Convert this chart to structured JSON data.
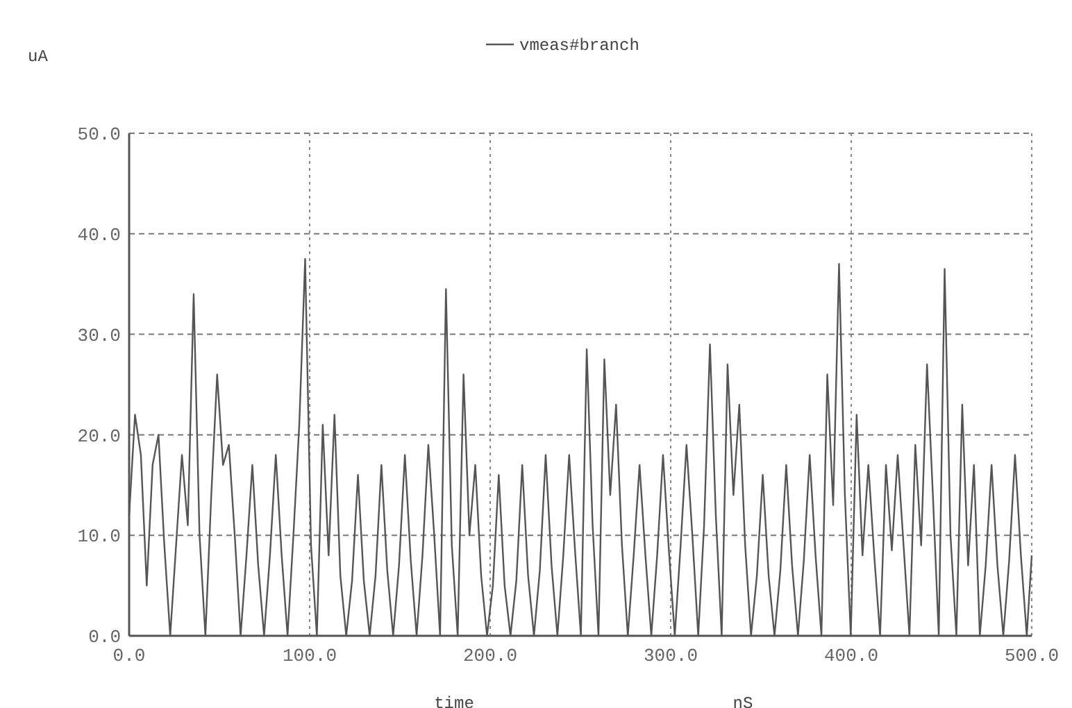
{
  "chart_data": {
    "type": "line",
    "ylabel": "uA",
    "xlabel": "time",
    "annotations": [
      "nS"
    ],
    "legend": "top",
    "grid": true,
    "xlim": [
      0,
      500
    ],
    "ylim": [
      0,
      50
    ],
    "xticks": [
      {
        "value": 0,
        "label": "0.0"
      },
      {
        "value": 100,
        "label": "100.0"
      },
      {
        "value": 200,
        "label": "200.0"
      },
      {
        "value": 300,
        "label": "300.0"
      },
      {
        "value": 400,
        "label": "400.0"
      },
      {
        "value": 500,
        "label": "500.0"
      }
    ],
    "yticks": [
      {
        "value": 0,
        "label": "0.0"
      },
      {
        "value": 10,
        "label": "10.0"
      },
      {
        "value": 20,
        "label": "20.0"
      },
      {
        "value": 30,
        "label": "30.0"
      },
      {
        "value": 40,
        "label": "40.0"
      },
      {
        "value": 50,
        "label": "50.0"
      }
    ],
    "x": [
      0,
      3.25,
      6.5,
      9.75,
      13,
      16.25,
      19.5,
      22.75,
      26,
      29.25,
      32.5,
      35.75,
      39,
      42.25,
      45.5,
      48.75,
      52,
      55.25,
      58.5,
      61.75,
      65,
      68.25,
      71.5,
      74.75,
      78,
      81.25,
      84.5,
      87.75,
      91,
      94.25,
      97.5,
      100.75,
      104,
      107.25,
      110.5,
      113.75,
      117,
      120.25,
      123.5,
      126.75,
      130,
      133.25,
      136.5,
      139.75,
      143,
      146.25,
      149.5,
      152.75,
      156,
      159.25,
      162.5,
      165.75,
      169,
      172.25,
      175.5,
      178.75,
      182,
      185.25,
      188.5,
      191.75,
      195,
      198.25,
      201.5,
      204.75,
      208,
      211.25,
      214.5,
      217.75,
      221,
      224.25,
      227.5,
      230.75,
      234,
      237.25,
      240.5,
      243.75,
      247,
      250.25,
      253.5,
      256.75,
      260,
      263.25,
      266.5,
      269.75,
      273,
      276.25,
      279.5,
      282.75,
      286,
      289.25,
      292.5,
      295.75,
      299,
      302.25,
      305.5,
      308.75,
      312,
      315.25,
      318.5,
      321.75,
      325,
      328.25,
      331.5,
      334.75,
      338,
      341.25,
      344.5,
      347.75,
      351,
      354.25,
      357.5,
      360.75,
      364,
      367.25,
      370.5,
      373.75,
      377,
      380.25,
      383.5,
      386.75,
      390,
      393.25,
      396.5,
      399.75,
      403,
      406.25,
      409.5,
      412.75,
      416,
      419.25,
      422.5,
      425.75,
      429,
      432.25,
      435.5,
      438.75,
      442,
      445.25,
      448.5,
      451.75,
      455,
      458.25,
      461.5,
      464.75,
      468,
      471.25,
      474.5,
      477.75,
      481,
      484.25,
      487.5,
      490.75,
      494,
      497.25,
      500
    ],
    "series": [
      {
        "name": "vmeas#branch",
        "color": "#555555",
        "values": [
          12,
          22,
          18,
          5,
          17,
          20,
          9,
          0,
          9,
          18,
          11,
          34,
          10,
          0,
          14,
          26,
          17,
          19,
          10,
          0,
          8,
          17,
          7,
          0,
          8,
          18,
          8,
          0,
          10,
          21,
          37.5,
          9,
          0,
          21,
          8,
          22,
          6,
          0,
          5.5,
          16,
          5.5,
          0,
          6,
          17,
          6.5,
          0,
          7,
          18,
          7.5,
          0,
          8,
          19,
          10,
          0,
          34.5,
          9,
          0,
          26,
          10,
          17,
          6,
          0,
          5,
          16,
          5,
          0,
          5.5,
          17,
          6,
          0,
          6.5,
          18,
          7,
          0,
          8,
          18,
          8.5,
          0,
          28.5,
          11,
          0,
          27.5,
          14,
          23,
          9,
          0,
          8,
          17,
          8,
          0,
          8,
          18,
          8.5,
          0,
          9,
          19,
          10,
          0,
          11,
          29,
          12,
          0,
          27,
          14,
          23,
          9,
          0,
          6,
          16,
          6,
          0,
          6.5,
          17,
          7,
          0,
          7.5,
          18,
          8,
          0,
          26,
          13,
          37,
          14,
          0,
          22,
          8,
          17,
          8,
          0,
          17,
          8.5,
          18,
          9,
          0,
          19,
          9,
          27,
          14,
          0,
          36.5,
          10,
          0,
          23,
          7,
          17,
          0,
          7,
          17,
          7,
          0,
          7.5,
          18,
          8,
          0,
          8
        ]
      }
    ]
  }
}
